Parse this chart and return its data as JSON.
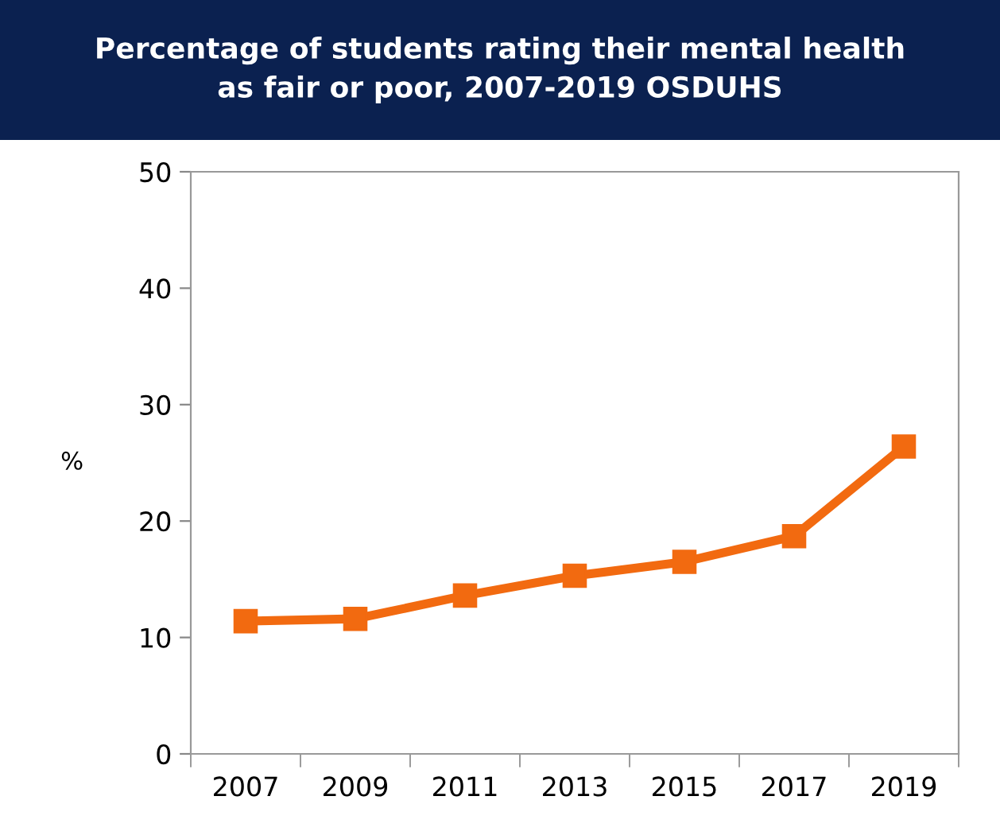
{
  "chart_data": {
    "type": "line",
    "title": "Percentage of students rating their mental health\nas fair or poor, 2007-2019 OSDUHS",
    "ylabel": "%",
    "categories": [
      "2007",
      "2009",
      "2011",
      "2013",
      "2015",
      "2017",
      "2019"
    ],
    "series": [
      {
        "color": "#f26a10",
        "values": [
          11.4,
          11.6,
          13.6,
          15.3,
          16.5,
          18.7,
          26.4
        ]
      }
    ],
    "ylim": [
      0,
      50
    ],
    "yticks": [
      0,
      10,
      20,
      30,
      40,
      50
    ],
    "grid": false,
    "legend": false,
    "marker": "square",
    "line_style": "solid"
  }
}
